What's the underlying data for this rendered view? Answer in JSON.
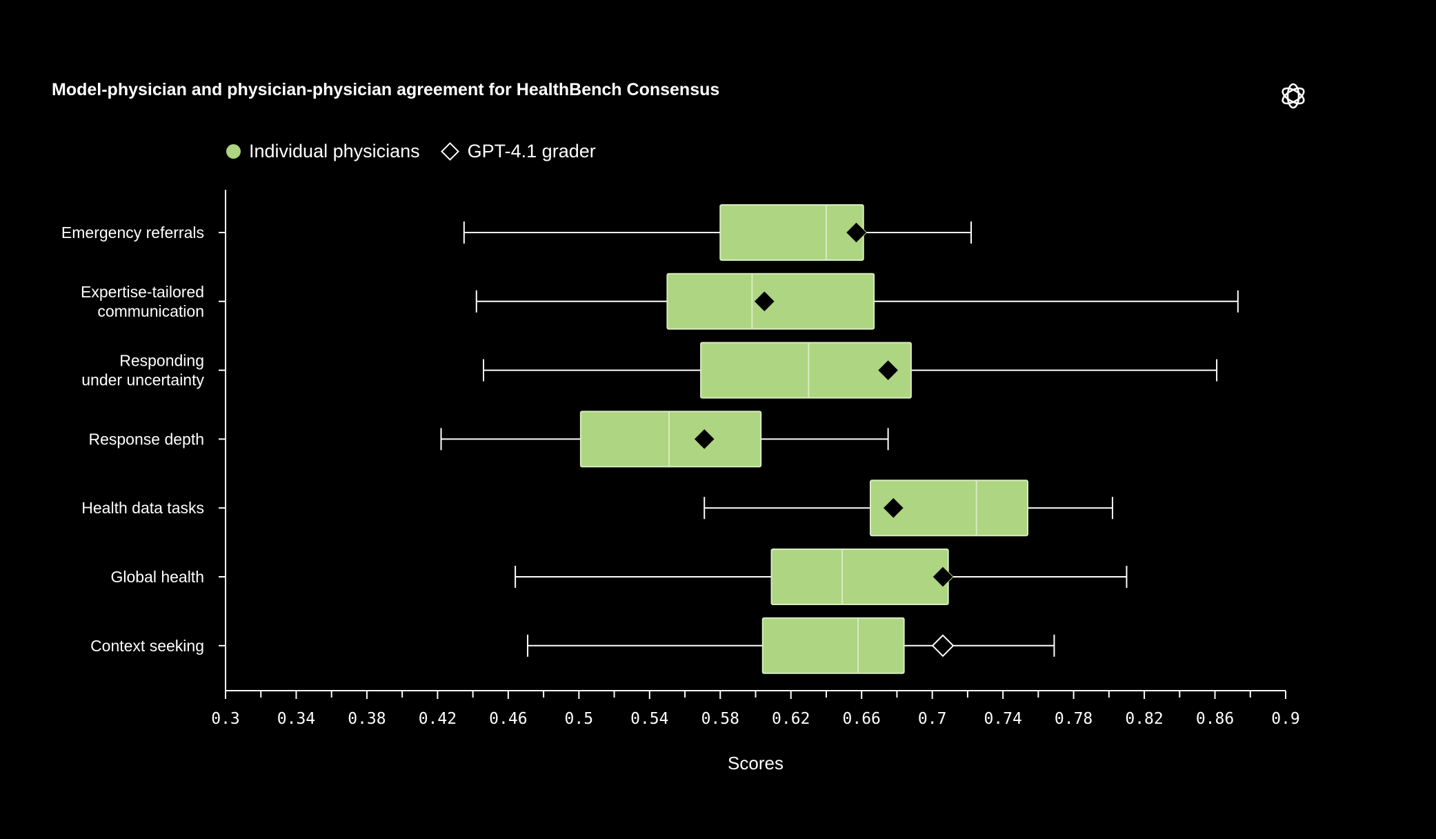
{
  "title": "Model-physician and physician-physician agreement for HealthBench Consensus",
  "logo_icon": "openai-logo-icon",
  "legend": {
    "physicians_label": "Individual physicians",
    "grader_label": "GPT-4.1 grader"
  },
  "colors": {
    "box_fill": "#aed581",
    "box_stroke": "#d8ecc0",
    "line": "#ffffff",
    "background": "#000000"
  },
  "chart_data": {
    "type": "box",
    "title": "Model-physician and physician-physician agreement for HealthBench Consensus",
    "xlabel": "Scores",
    "xlim": [
      0.3,
      0.9
    ],
    "xticks": [
      "0.3",
      "0.34",
      "0.38",
      "0.42",
      "0.46",
      "0.5",
      "0.54",
      "0.58",
      "0.62",
      "0.66",
      "0.7",
      "0.74",
      "0.78",
      "0.82",
      "0.86",
      "0.9"
    ],
    "legend_position": "top-left",
    "grid": false,
    "categories": [
      {
        "lines": [
          "Emergency referrals"
        ],
        "min": 0.435,
        "q1": 0.58,
        "median": 0.64,
        "q3": 0.661,
        "max": 0.722,
        "grader": 0.657,
        "grader_style": "filled"
      },
      {
        "lines": [
          "Expertise-tailored",
          "communication"
        ],
        "min": 0.442,
        "q1": 0.55,
        "median": 0.598,
        "q3": 0.667,
        "max": 0.873,
        "grader": 0.605,
        "grader_style": "filled"
      },
      {
        "lines": [
          "Responding",
          "under uncertainty"
        ],
        "min": 0.446,
        "q1": 0.569,
        "median": 0.63,
        "q3": 0.688,
        "max": 0.861,
        "grader": 0.675,
        "grader_style": "filled"
      },
      {
        "lines": [
          "Response depth"
        ],
        "min": 0.422,
        "q1": 0.501,
        "median": 0.551,
        "q3": 0.603,
        "max": 0.675,
        "grader": 0.571,
        "grader_style": "filled"
      },
      {
        "lines": [
          "Health data tasks"
        ],
        "min": 0.571,
        "q1": 0.665,
        "median": 0.725,
        "q3": 0.754,
        "max": 0.802,
        "grader": 0.678,
        "grader_style": "filled"
      },
      {
        "lines": [
          "Global health"
        ],
        "min": 0.464,
        "q1": 0.609,
        "median": 0.649,
        "q3": 0.709,
        "max": 0.81,
        "grader": 0.706,
        "grader_style": "filled"
      },
      {
        "lines": [
          "Context seeking"
        ],
        "min": 0.471,
        "q1": 0.604,
        "median": 0.658,
        "q3": 0.684,
        "max": 0.769,
        "grader": 0.706,
        "grader_style": "hollow"
      }
    ]
  }
}
